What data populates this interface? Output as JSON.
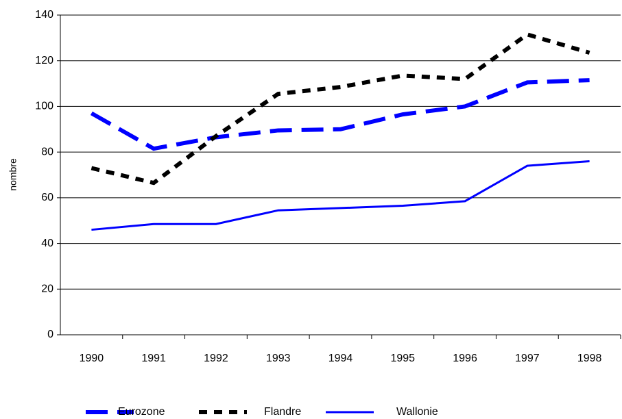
{
  "chart_data": {
    "type": "line",
    "y_label": "nombre",
    "categories": [
      "1990",
      "1991",
      "1992",
      "1993",
      "1994",
      "1995",
      "1996",
      "1997",
      "1998"
    ],
    "series": [
      {
        "name": "Eurozone",
        "color": "#0000ff",
        "style": "dashed",
        "values": [
          97,
          81.5,
          86.5,
          89.5,
          90,
          96.5,
          100,
          110.5,
          111.5
        ]
      },
      {
        "name": "Flandre",
        "color": "#000000",
        "style": "dotted",
        "values": [
          73,
          66.5,
          87,
          105.5,
          108.5,
          113.5,
          112,
          131.5,
          123.5
        ]
      },
      {
        "name": "Wallonie",
        "color": "#0000ff",
        "style": "solid",
        "values": [
          46,
          48.5,
          48.5,
          54.5,
          55.5,
          56.5,
          58.5,
          74,
          76
        ]
      }
    ],
    "ylim": [
      0,
      140
    ],
    "yticks": [
      0,
      20,
      40,
      60,
      80,
      100,
      120,
      140
    ],
    "grid": true,
    "legend": "bottom"
  }
}
